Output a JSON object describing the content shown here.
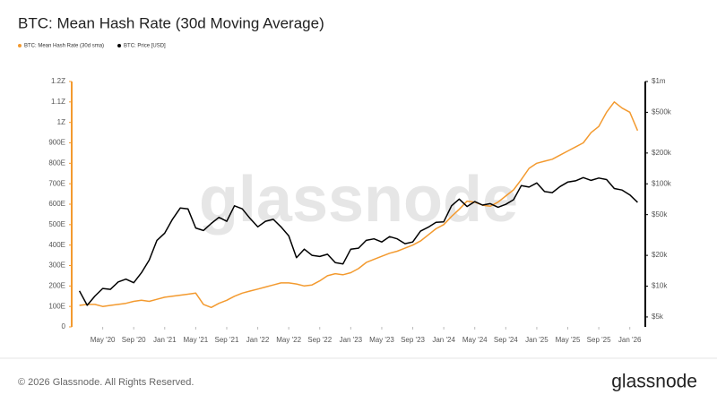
{
  "chart_data": {
    "type": "line",
    "title": "BTC: Mean Hash Rate (30d Moving Average)",
    "watermark": "glassnode",
    "x": [
      "2020-02",
      "2020-03",
      "2020-04",
      "2020-05",
      "2020-06",
      "2020-07",
      "2020-08",
      "2020-09",
      "2020-10",
      "2020-11",
      "2020-12",
      "2021-01",
      "2021-02",
      "2021-03",
      "2021-04",
      "2021-05",
      "2021-06",
      "2021-07",
      "2021-08",
      "2021-09",
      "2021-10",
      "2021-11",
      "2021-12",
      "2022-01",
      "2022-02",
      "2022-03",
      "2022-04",
      "2022-05",
      "2022-06",
      "2022-07",
      "2022-08",
      "2022-09",
      "2022-10",
      "2022-11",
      "2022-12",
      "2023-01",
      "2023-02",
      "2023-03",
      "2023-04",
      "2023-05",
      "2023-06",
      "2023-07",
      "2023-08",
      "2023-09",
      "2023-10",
      "2023-11",
      "2023-12",
      "2024-01",
      "2024-02",
      "2024-03",
      "2024-04",
      "2024-05",
      "2024-06",
      "2024-07",
      "2024-08",
      "2024-09",
      "2024-10",
      "2024-11",
      "2024-12",
      "2025-01",
      "2025-02",
      "2025-03",
      "2025-04",
      "2025-05",
      "2025-06",
      "2025-07",
      "2025-08",
      "2025-09",
      "2025-10",
      "2025-11",
      "2025-12",
      "2026-01",
      "2026-02"
    ],
    "xlim": [
      "2020-01",
      "2026-03"
    ],
    "xticks": [
      {
        "value": "2020-05",
        "label": "May '20"
      },
      {
        "value": "2020-09",
        "label": "Sep '20"
      },
      {
        "value": "2021-01",
        "label": "Jan '21"
      },
      {
        "value": "2021-05",
        "label": "May '21"
      },
      {
        "value": "2021-09",
        "label": "Sep '21"
      },
      {
        "value": "2022-01",
        "label": "Jan '22"
      },
      {
        "value": "2022-05",
        "label": "May '22"
      },
      {
        "value": "2022-09",
        "label": "Sep '22"
      },
      {
        "value": "2023-01",
        "label": "Jan '23"
      },
      {
        "value": "2023-05",
        "label": "May '23"
      },
      {
        "value": "2023-09",
        "label": "Sep '23"
      },
      {
        "value": "2024-01",
        "label": "Jan '24"
      },
      {
        "value": "2024-05",
        "label": "May '24"
      },
      {
        "value": "2024-09",
        "label": "Sep '24"
      },
      {
        "value": "2025-01",
        "label": "Jan '25"
      },
      {
        "value": "2025-05",
        "label": "May '25"
      },
      {
        "value": "2025-09",
        "label": "Sep '25"
      },
      {
        "value": "2026-01",
        "label": "Jan '26"
      }
    ],
    "ylim": [
      0,
      1200
    ],
    "yticks": [
      0,
      {
        "value": 100,
        "label": "100E"
      },
      {
        "value": 200,
        "label": "200E"
      },
      {
        "value": 300,
        "label": "300E"
      },
      {
        "value": 400,
        "label": "400E"
      },
      {
        "value": 500,
        "label": "500E"
      },
      {
        "value": 600,
        "label": "600E"
      },
      {
        "value": 700,
        "label": "700E"
      },
      {
        "value": 800,
        "label": "800E"
      },
      {
        "value": 900,
        "label": "900E"
      },
      {
        "value": 1000,
        "label": "1Z"
      },
      {
        "value": 1100,
        "label": "1.1Z"
      },
      {
        "value": 1200,
        "label": "1.2Z"
      }
    ],
    "y2lim": [
      4000,
      1000000
    ],
    "y2log": true,
    "y2ticks": [
      {
        "value": 5000,
        "label": "$5k"
      },
      {
        "value": 10000,
        "label": "$10k"
      },
      {
        "value": 20000,
        "label": "$20k"
      },
      {
        "value": 50000,
        "label": "$50k"
      },
      {
        "value": 100000,
        "label": "$100k"
      },
      {
        "value": 200000,
        "label": "$200k"
      },
      {
        "value": 500000,
        "label": "$500k"
      },
      {
        "value": 1000000,
        "label": "$1m"
      }
    ],
    "series": [
      {
        "name": "BTC: Mean Hash Rate (30d sma)",
        "color": "#f39a2f",
        "axis": "y",
        "values": [
          105,
          110,
          110,
          100,
          105,
          110,
          115,
          125,
          130,
          125,
          135,
          145,
          150,
          155,
          160,
          165,
          110,
          95,
          115,
          130,
          150,
          165,
          175,
          185,
          195,
          205,
          215,
          215,
          210,
          200,
          205,
          225,
          250,
          260,
          255,
          265,
          285,
          315,
          330,
          345,
          360,
          370,
          385,
          400,
          420,
          450,
          480,
          500,
          540,
          575,
          615,
          610,
          595,
          590,
          610,
          640,
          670,
          720,
          775,
          800,
          810,
          820,
          840,
          860,
          880,
          900,
          950,
          980,
          1050,
          1100,
          1070,
          1050,
          960
        ]
      },
      {
        "name": "BTC: Price [USD]",
        "color": "#000000",
        "axis": "y2",
        "values": [
          9000,
          6500,
          8000,
          9500,
          9300,
          11000,
          11700,
          10800,
          13500,
          18000,
          28000,
          33000,
          45000,
          58000,
          57000,
          37000,
          35000,
          41000,
          47000,
          43000,
          61000,
          57000,
          46000,
          38000,
          43000,
          45000,
          38000,
          31000,
          19000,
          23000,
          20000,
          19500,
          20500,
          17000,
          16500,
          23000,
          23500,
          28000,
          29000,
          27000,
          30500,
          29000,
          26000,
          27000,
          34500,
          37700,
          42000,
          42500,
          61000,
          71000,
          60000,
          67000,
          62000,
          64000,
          59000,
          63000,
          70000,
          96000,
          93000,
          102000,
          84000,
          82000,
          94000,
          104000,
          107000,
          115000,
          108000,
          114000,
          110000,
          90000,
          87000,
          78000,
          66000
        ]
      }
    ]
  },
  "footer": {
    "copyright": "© 2026 Glassnode. All Rights Reserved.",
    "logo": "glassnode"
  }
}
